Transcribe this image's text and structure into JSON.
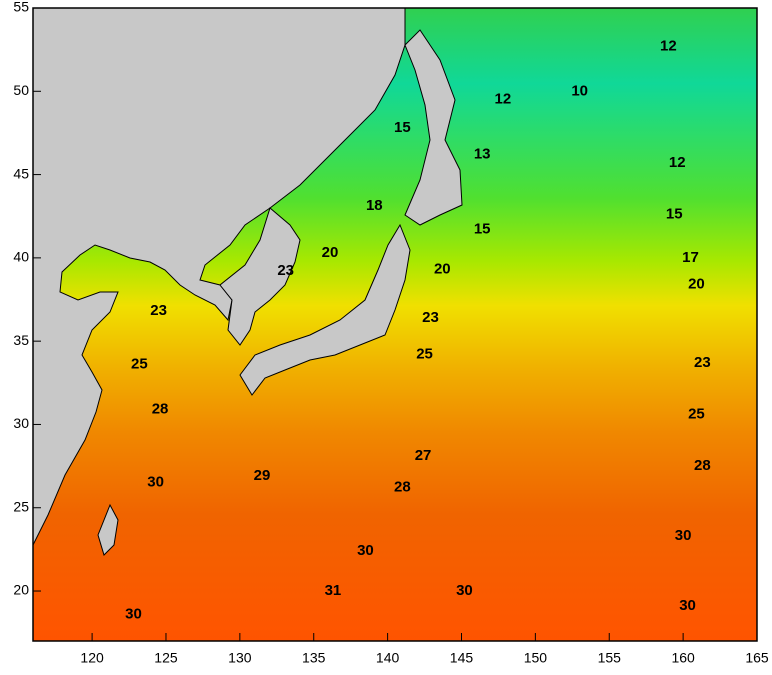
{
  "chart_data": {
    "type": "contour-map",
    "xlim": [
      116,
      165
    ],
    "ylim": [
      17,
      55
    ],
    "xticks": [
      120,
      125,
      130,
      135,
      140,
      145,
      150,
      155,
      160,
      165
    ],
    "yticks": [
      20,
      25,
      30,
      35,
      40,
      45,
      50,
      55
    ],
    "contour_labels": {
      "values": [
        12,
        10,
        12,
        15,
        13,
        12,
        15,
        18,
        15,
        20,
        20,
        17,
        23,
        20,
        23,
        23,
        25,
        25,
        23,
        28,
        25,
        27,
        29,
        30,
        28,
        28,
        30,
        30,
        31,
        30,
        30,
        30
      ],
      "lon": [
        159,
        153,
        147.8,
        141,
        146.4,
        159.6,
        159.4,
        139.1,
        146.4,
        136.1,
        143.7,
        160.5,
        133.1,
        160.9,
        124.5,
        142.9,
        142.5,
        123.2,
        161.3,
        124.6,
        160.9,
        142.4,
        131.5,
        124.3,
        141,
        161.3,
        138.5,
        160,
        136.3,
        145.2,
        122.8,
        160.3
      ],
      "lat": [
        52.7,
        50,
        49.5,
        47.8,
        46.2,
        45.7,
        42.6,
        43.1,
        41.7,
        40.3,
        39.3,
        40,
        39.2,
        38.4,
        36.8,
        36.4,
        34.2,
        33.6,
        33.7,
        30.9,
        30.6,
        28.1,
        26.9,
        26.5,
        26.2,
        27.5,
        22.4,
        23.3,
        20,
        20,
        18.6,
        19.1
      ]
    }
  }
}
